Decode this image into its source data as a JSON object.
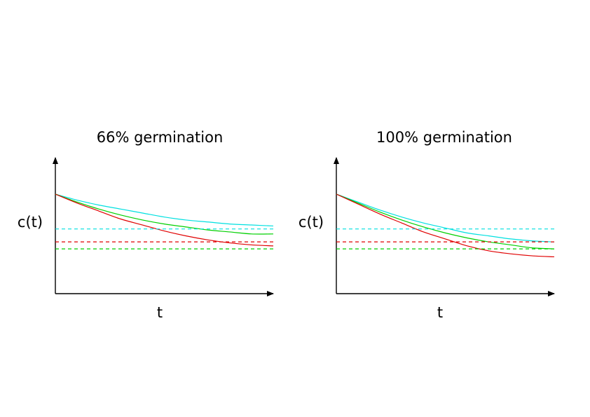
{
  "chart_data": [
    {
      "type": "line",
      "title": "66% germination",
      "xlabel": "t",
      "ylabel": "c(t)",
      "xlim": [
        0,
        1
      ],
      "ylim": [
        0,
        1
      ],
      "grid": false,
      "legend": "none",
      "series": [
        {
          "color": "#00e0e0",
          "style": "solid",
          "x": [
            0,
            0.1,
            0.2,
            0.3,
            0.4,
            0.5,
            0.6,
            0.7,
            0.8,
            0.9,
            1.0
          ],
          "y": [
            1.0,
            0.94,
            0.89,
            0.85,
            0.81,
            0.77,
            0.74,
            0.72,
            0.7,
            0.69,
            0.68
          ]
        },
        {
          "color": "#00d000",
          "style": "solid",
          "x": [
            0,
            0.1,
            0.2,
            0.3,
            0.4,
            0.5,
            0.6,
            0.7,
            0.8,
            0.9,
            1.0
          ],
          "y": [
            1.0,
            0.92,
            0.85,
            0.79,
            0.74,
            0.7,
            0.67,
            0.64,
            0.62,
            0.6,
            0.6
          ]
        },
        {
          "color": "#e00000",
          "style": "solid",
          "x": [
            0,
            0.1,
            0.2,
            0.3,
            0.4,
            0.5,
            0.6,
            0.7,
            0.8,
            0.9,
            1.0
          ],
          "y": [
            1.0,
            0.91,
            0.83,
            0.75,
            0.69,
            0.63,
            0.58,
            0.54,
            0.51,
            0.49,
            0.48
          ]
        },
        {
          "color": "#00e0e0",
          "style": "dashed",
          "x": [
            0,
            1.0
          ],
          "y": [
            0.65,
            0.65
          ]
        },
        {
          "color": "#e00000",
          "style": "dashed",
          "x": [
            0,
            1.0
          ],
          "y": [
            0.52,
            0.52
          ]
        },
        {
          "color": "#00d000",
          "style": "dashed",
          "x": [
            0,
            1.0
          ],
          "y": [
            0.45,
            0.45
          ]
        }
      ]
    },
    {
      "type": "line",
      "title": "100% germination",
      "xlabel": "t",
      "ylabel": "c(t)",
      "xlim": [
        0,
        1
      ],
      "ylim": [
        0,
        1
      ],
      "grid": false,
      "legend": "none",
      "series": [
        {
          "color": "#00e0e0",
          "style": "solid",
          "x": [
            0,
            0.1,
            0.2,
            0.3,
            0.4,
            0.5,
            0.6,
            0.7,
            0.8,
            0.9,
            1.0
          ],
          "y": [
            1.0,
            0.92,
            0.84,
            0.77,
            0.71,
            0.66,
            0.61,
            0.58,
            0.55,
            0.53,
            0.52
          ]
        },
        {
          "color": "#00d000",
          "style": "solid",
          "x": [
            0,
            0.1,
            0.2,
            0.3,
            0.4,
            0.5,
            0.6,
            0.7,
            0.8,
            0.9,
            1.0
          ],
          "y": [
            1.0,
            0.91,
            0.82,
            0.74,
            0.67,
            0.61,
            0.56,
            0.52,
            0.49,
            0.46,
            0.45
          ]
        },
        {
          "color": "#e00000",
          "style": "solid",
          "x": [
            0,
            0.1,
            0.2,
            0.3,
            0.4,
            0.5,
            0.6,
            0.7,
            0.8,
            0.9,
            1.0
          ],
          "y": [
            1.0,
            0.9,
            0.8,
            0.71,
            0.62,
            0.55,
            0.48,
            0.43,
            0.4,
            0.38,
            0.37
          ]
        },
        {
          "color": "#00e0e0",
          "style": "dashed",
          "x": [
            0,
            1.0
          ],
          "y": [
            0.65,
            0.65
          ]
        },
        {
          "color": "#e00000",
          "style": "dashed",
          "x": [
            0,
            1.0
          ],
          "y": [
            0.52,
            0.52
          ]
        },
        {
          "color": "#00d000",
          "style": "dashed",
          "x": [
            0,
            1.0
          ],
          "y": [
            0.45,
            0.45
          ]
        }
      ]
    }
  ]
}
